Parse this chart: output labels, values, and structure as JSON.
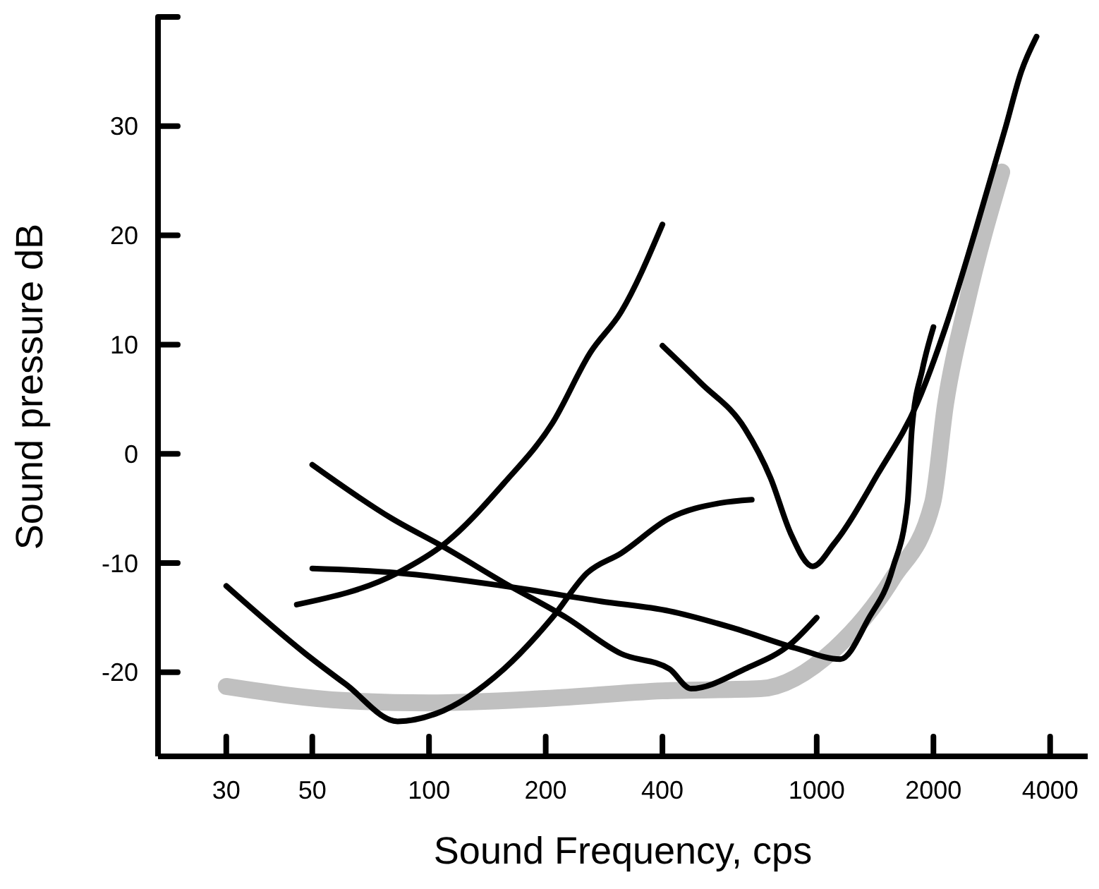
{
  "chart_data": {
    "type": "line",
    "xlabel": "Sound Frequency, cps",
    "ylabel": "Sound pressure dB",
    "log": "x",
    "xlim": [
      20,
      5000
    ],
    "xticks": [
      30,
      50,
      100,
      200,
      400,
      1000,
      2000,
      4000
    ],
    "ylim": [
      -27.7,
      40
    ],
    "yticks": [
      -20,
      -10,
      0,
      10,
      20,
      30,
      {
        "value": 40,
        "label": null
      }
    ],
    "series": [
      {
        "color": "#c0c0c0",
        "x": [
          30,
          61,
          100,
          200,
          400,
          716,
          1110,
          1570,
          1990,
          2150,
          2440,
          3000
        ],
        "values": [
          -21.3,
          -22.6,
          -22.8,
          -22.4,
          -21.7,
          -21.5,
          -17.9,
          -11.4,
          -4.5,
          4.6,
          13.9,
          25.8
        ]
      },
      {
        "color": "#000000",
        "x": [
          30,
          48,
          61,
          83,
          104,
          156,
          208,
          256,
          313,
          417,
          565,
          680
        ],
        "values": [
          -12.1,
          -18.3,
          -21.1,
          -24.5,
          -23.8,
          -19.7,
          -15,
          -10.9,
          -9.1,
          -5.9,
          -4.5,
          -4.2
        ]
      },
      {
        "color": "#000000",
        "x": [
          45.6,
          83,
          110,
          156,
          208,
          261,
          313,
          400
        ],
        "values": [
          -13.8,
          -10.9,
          -8.2,
          -2.7,
          2.8,
          9.3,
          13,
          21
        ]
      },
      {
        "color": "#000000",
        "x": [
          50,
          83,
          156,
          277,
          417,
          616,
          884,
          1150,
          1360,
          1570,
          1715,
          1760,
          1875,
          2000
        ],
        "values": [
          -10.5,
          -10.9,
          -12.1,
          -13.5,
          -14.4,
          -16,
          -17.8,
          -18.8,
          -15.1,
          -10.5,
          -4.5,
          2.3,
          7.8,
          11.6
        ]
      },
      {
        "color": "#000000",
        "x": [
          50,
          80,
          110,
          156,
          226,
          313,
          417,
          474,
          653,
          857,
          1000
        ],
        "values": [
          -1,
          -5.9,
          -8.6,
          -11.8,
          -15,
          -18.3,
          -19.7,
          -21.5,
          -19.7,
          -17.4,
          -15
        ]
      },
      {
        "color": "#000000",
        "x": [
          400,
          502,
          653,
          760,
          857,
          976,
          1110,
          1440,
          1815,
          2150,
          2580,
          3070,
          3370,
          3690
        ],
        "values": [
          9.9,
          6.5,
          2.3,
          -2.2,
          -7.3,
          -10.3,
          -8.2,
          -1.8,
          4.6,
          11.6,
          20.7,
          29.9,
          35,
          38.2
        ]
      }
    ]
  }
}
